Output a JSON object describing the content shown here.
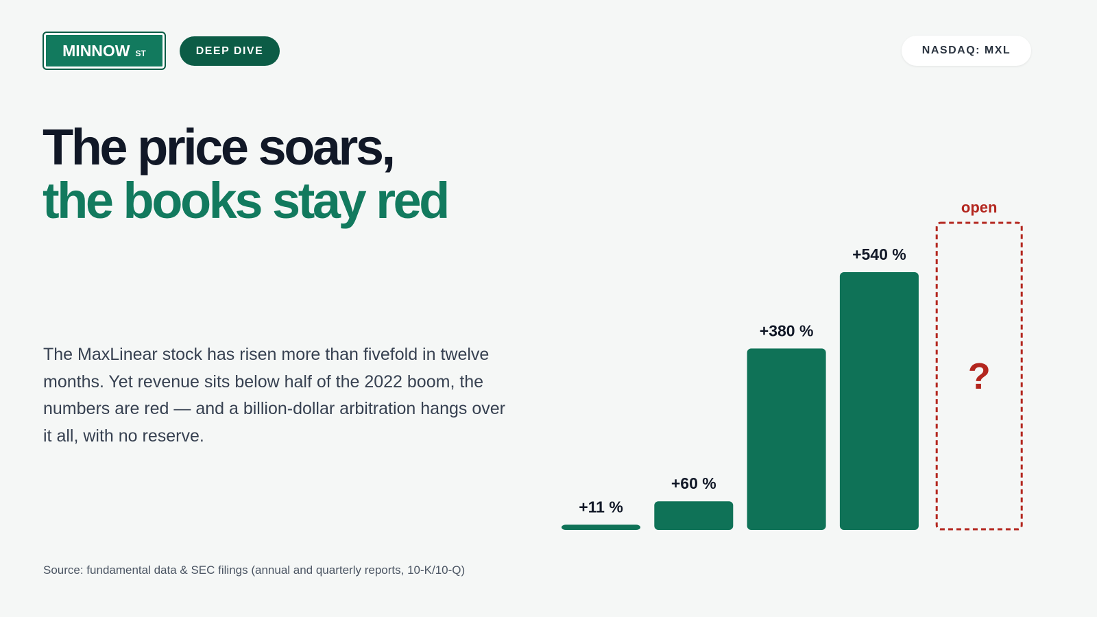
{
  "header": {
    "brand": "MINNOW",
    "brand_suffix": "ST",
    "tag": "DEEP DIVE",
    "ticker": "NASDAQ: MXL"
  },
  "headline": {
    "line1": "The price soars,",
    "line2": "the books stay red"
  },
  "body": "The MaxLinear stock has risen more than fivefold in twelve months. Yet revenue sits below half of the 2022 boom, the numbers are red — and a billion-dollar arbitration hangs over it all, with no reserve.",
  "source": "Source: fundamental data & SEC filings (annual and quarterly reports, 10-K/10-Q)",
  "chart_data": {
    "type": "bar",
    "values": [
      11,
      60,
      380,
      540
    ],
    "value_labels": [
      "+11 %",
      "+60 %",
      "+380 %",
      "+540 %"
    ],
    "color": "#0f7257",
    "open_label": "open",
    "open_mark": "?",
    "open_color": "#b3261e"
  }
}
